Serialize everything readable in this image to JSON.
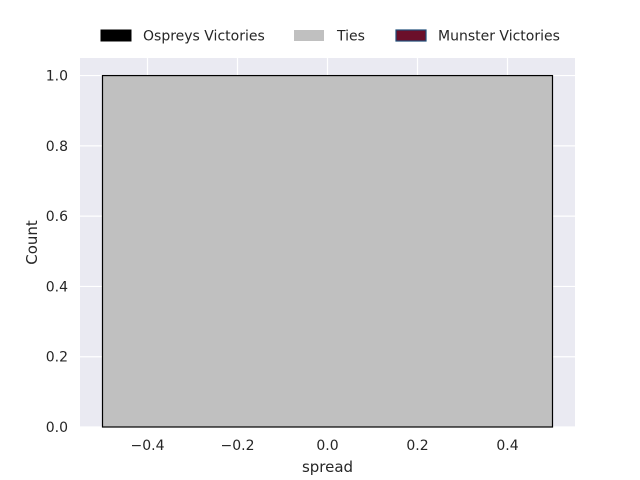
{
  "colors": {
    "background": "#eaeaf2",
    "grid": "#ffffff",
    "ospreys": "#000000",
    "ties": "#c0c0c0",
    "munster_fill": "#6b0f2a",
    "munster_edge": "#1f4e79",
    "bar_edge": "#000000"
  },
  "chart_data": {
    "type": "bar",
    "xlabel": "spread",
    "ylabel": "Count",
    "xlim": [
      -0.55,
      0.55
    ],
    "ylim": [
      0,
      1.05
    ],
    "xticks": [
      -0.4,
      -0.2,
      0.0,
      0.2,
      0.4
    ],
    "xtick_labels": [
      "−0.4",
      "−0.2",
      "0.0",
      "0.2",
      "0.4"
    ],
    "yticks": [
      0.0,
      0.2,
      0.4,
      0.6,
      0.8,
      1.0
    ],
    "ytick_labels": [
      "0.0",
      "0.2",
      "0.4",
      "0.6",
      "0.8",
      "1.0"
    ],
    "grid": true,
    "legend_position": "top-center",
    "legend": [
      {
        "label": "Ospreys Victories",
        "color_key": "ospreys"
      },
      {
        "label": "Ties",
        "color_key": "ties"
      },
      {
        "label": "Munster Victories",
        "color_key": "munster_fill"
      }
    ],
    "bars": [
      {
        "series": "Ties",
        "x_start": -0.5,
        "x_end": 0.5,
        "value": 1.0
      }
    ]
  }
}
